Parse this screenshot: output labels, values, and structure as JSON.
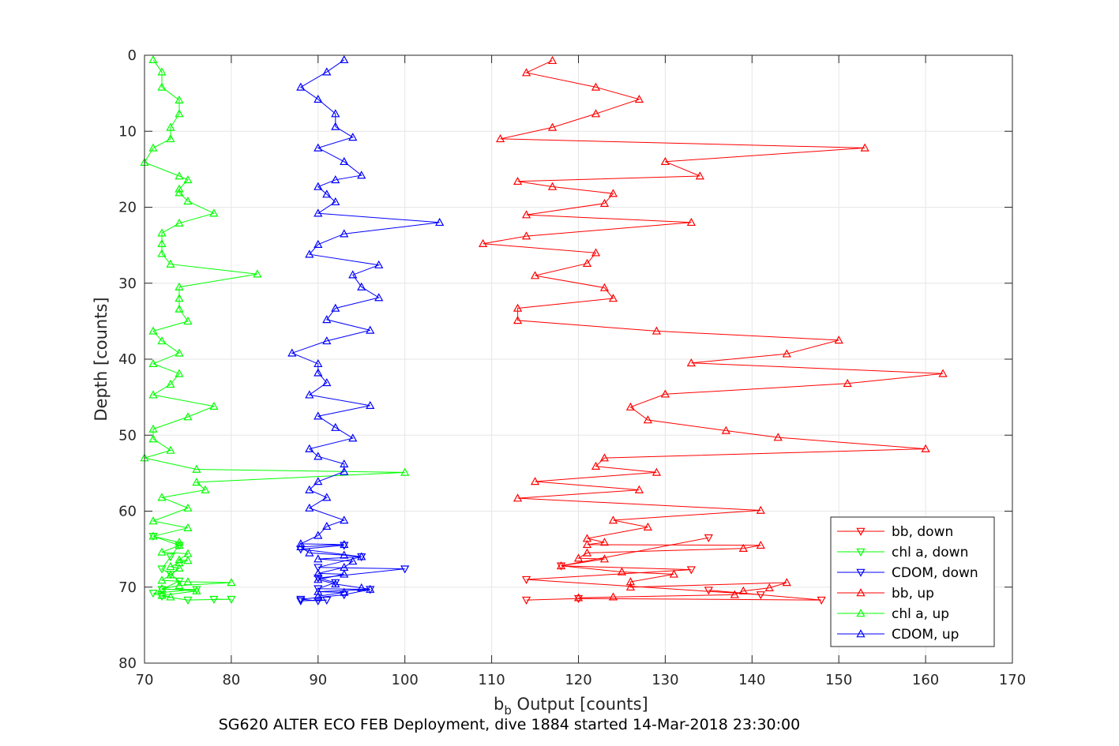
{
  "chart_data": {
    "type": "line",
    "xlabel_main": "b",
    "xlabel_sub": "b",
    "xlabel_rest": " Output [counts]",
    "ylabel": "Depth [counts]",
    "caption": "SG620 ALTER ECO FEB Deployment, dive 1884 started 14-Mar-2018 23:30:00",
    "xlim": [
      70,
      170
    ],
    "ylim": [
      0,
      80
    ],
    "y_reversed": true,
    "grid": true,
    "xticks": [
      70,
      80,
      90,
      100,
      110,
      120,
      130,
      140,
      150,
      160,
      170
    ],
    "yticks": [
      0,
      10,
      20,
      30,
      40,
      50,
      60,
      70,
      80
    ],
    "legend_position": "lower-right",
    "series": [
      {
        "name": "bb, down",
        "color": "#ff0000",
        "marker": "triangle-down",
        "points": [
          [
            135,
            63.5
          ],
          [
            118,
            67.2
          ],
          [
            133,
            67.7
          ],
          [
            114,
            69.0
          ],
          [
            141,
            71.0
          ],
          [
            135,
            70.4
          ],
          [
            148,
            71.7
          ],
          [
            120,
            71.5
          ],
          [
            114,
            71.7
          ]
        ]
      },
      {
        "name": "chl a, down",
        "color": "#00ff00",
        "marker": "triangle-down",
        "points": [
          [
            71,
            63.3
          ],
          [
            74,
            64.5
          ],
          [
            73,
            66.0
          ],
          [
            72,
            67.6
          ],
          [
            73,
            68.3
          ],
          [
            74,
            69.2
          ],
          [
            72,
            70.3
          ],
          [
            76,
            70.3
          ],
          [
            71,
            70.8
          ],
          [
            72,
            71.2
          ],
          [
            75,
            71.7
          ],
          [
            80,
            71.6
          ],
          [
            78,
            71.6
          ]
        ]
      },
      {
        "name": "CDOM, down",
        "color": "#0000ff",
        "marker": "triangle-down",
        "points": [
          [
            93,
            64.5
          ],
          [
            88,
            65.0
          ],
          [
            95,
            66.0
          ],
          [
            90,
            67.4
          ],
          [
            100,
            67.6
          ],
          [
            90,
            68.8
          ],
          [
            92,
            69.4
          ],
          [
            90,
            70.2
          ],
          [
            96,
            70.3
          ],
          [
            93,
            71.0
          ],
          [
            88,
            71.6
          ],
          [
            90,
            71.8
          ],
          [
            91,
            71.7
          ],
          [
            88,
            71.8
          ]
        ]
      },
      {
        "name": "bb, up",
        "color": "#ff0000",
        "marker": "triangle-up",
        "points": [
          [
            117,
            0.7
          ],
          [
            114,
            2.3
          ],
          [
            122,
            4.2
          ],
          [
            127,
            5.8
          ],
          [
            122,
            7.7
          ],
          [
            117,
            9.5
          ],
          [
            111,
            11.0
          ],
          [
            153,
            12.2
          ],
          [
            130,
            14.0
          ],
          [
            134,
            15.9
          ],
          [
            113,
            16.6
          ],
          [
            117,
            17.3
          ],
          [
            124,
            18.2
          ],
          [
            123,
            19.5
          ],
          [
            114,
            21.0
          ],
          [
            133,
            22.0
          ],
          [
            114,
            23.8
          ],
          [
            109,
            24.8
          ],
          [
            122,
            26.0
          ],
          [
            121,
            27.4
          ],
          [
            115,
            29.0
          ],
          [
            123,
            30.6
          ],
          [
            124,
            32.0
          ],
          [
            113,
            33.3
          ],
          [
            113,
            34.9
          ],
          [
            129,
            36.3
          ],
          [
            150,
            37.5
          ],
          [
            144,
            39.3
          ],
          [
            133,
            40.5
          ],
          [
            162,
            41.9
          ],
          [
            151,
            43.2
          ],
          [
            130,
            44.6
          ],
          [
            126,
            46.3
          ],
          [
            128,
            48.0
          ],
          [
            137,
            49.4
          ],
          [
            143,
            50.3
          ],
          [
            160,
            51.8
          ],
          [
            123,
            53.0
          ],
          [
            122,
            54.1
          ],
          [
            129,
            54.9
          ],
          [
            115,
            56.1
          ],
          [
            127,
            57.2
          ],
          [
            113,
            58.3
          ],
          [
            141,
            59.9
          ],
          [
            124,
            61.2
          ],
          [
            128,
            62.1
          ],
          [
            121,
            63.6
          ],
          [
            123,
            64.1
          ],
          [
            121,
            64.4
          ],
          [
            141,
            64.5
          ],
          [
            139,
            64.9
          ],
          [
            121,
            65.5
          ],
          [
            120,
            66.2
          ],
          [
            123,
            66.3
          ],
          [
            118,
            67.2
          ],
          [
            125,
            68.0
          ],
          [
            131,
            68.3
          ],
          [
            126,
            69.3
          ],
          [
            126,
            70.0
          ],
          [
            144,
            69.4
          ],
          [
            142,
            70.1
          ],
          [
            139,
            70.5
          ],
          [
            138,
            71.0
          ],
          [
            124,
            71.3
          ],
          [
            120,
            71.4
          ]
        ]
      },
      {
        "name": "chl a, up",
        "color": "#00ff00",
        "marker": "triangle-up",
        "points": [
          [
            71,
            0.6
          ],
          [
            72,
            2.2
          ],
          [
            72,
            4.2
          ],
          [
            74,
            5.9
          ],
          [
            74,
            7.7
          ],
          [
            73,
            9.5
          ],
          [
            73,
            11.0
          ],
          [
            71,
            12.2
          ],
          [
            70,
            14.1
          ],
          [
            74,
            15.9
          ],
          [
            75,
            16.4
          ],
          [
            74,
            17.6
          ],
          [
            74,
            18.1
          ],
          [
            75,
            19.2
          ],
          [
            78,
            20.8
          ],
          [
            74,
            22.1
          ],
          [
            72,
            23.4
          ],
          [
            72,
            24.8
          ],
          [
            72,
            26.1
          ],
          [
            73,
            27.5
          ],
          [
            83,
            28.8
          ],
          [
            74,
            30.5
          ],
          [
            74,
            32.0
          ],
          [
            74,
            33.4
          ],
          [
            75,
            35.0
          ],
          [
            71,
            36.3
          ],
          [
            72,
            37.6
          ],
          [
            74,
            39.2
          ],
          [
            71,
            40.6
          ],
          [
            74,
            41.9
          ],
          [
            73,
            43.3
          ],
          [
            71,
            44.7
          ],
          [
            78,
            46.2
          ],
          [
            75,
            47.6
          ],
          [
            71,
            49.2
          ],
          [
            71,
            50.5
          ],
          [
            73,
            52.0
          ],
          [
            70,
            53.0
          ],
          [
            76,
            54.5
          ],
          [
            100,
            54.9
          ],
          [
            76,
            56.2
          ],
          [
            77,
            57.2
          ],
          [
            72,
            58.2
          ],
          [
            75,
            59.6
          ],
          [
            71,
            61.3
          ],
          [
            75,
            62.2
          ],
          [
            71,
            63.3
          ],
          [
            74,
            64.1
          ],
          [
            74,
            64.5
          ],
          [
            72,
            65.4
          ],
          [
            75,
            65.6
          ],
          [
            74,
            66.4
          ],
          [
            75,
            66.5
          ],
          [
            74,
            66.8
          ],
          [
            73,
            67.3
          ],
          [
            74,
            67.5
          ],
          [
            73,
            68.4
          ],
          [
            72,
            69.1
          ],
          [
            75,
            69.3
          ],
          [
            80,
            69.4
          ],
          [
            74,
            69.8
          ],
          [
            72,
            70.2
          ],
          [
            76,
            70.5
          ],
          [
            72,
            71.1
          ],
          [
            73,
            71.3
          ]
        ]
      },
      {
        "name": "CDOM, up",
        "color": "#0000ff",
        "marker": "triangle-up",
        "points": [
          [
            93,
            0.6
          ],
          [
            91,
            2.2
          ],
          [
            88,
            4.2
          ],
          [
            90,
            5.8
          ],
          [
            92,
            7.7
          ],
          [
            92,
            9.4
          ],
          [
            94,
            10.8
          ],
          [
            90,
            12.2
          ],
          [
            93,
            14.0
          ],
          [
            95,
            15.8
          ],
          [
            92,
            16.4
          ],
          [
            90,
            17.3
          ],
          [
            91,
            18.3
          ],
          [
            92,
            19.3
          ],
          [
            90,
            20.8
          ],
          [
            104,
            22.0
          ],
          [
            93,
            23.5
          ],
          [
            90,
            24.9
          ],
          [
            89,
            26.2
          ],
          [
            97,
            27.6
          ],
          [
            94,
            28.9
          ],
          [
            95,
            30.5
          ],
          [
            97,
            31.9
          ],
          [
            92,
            33.3
          ],
          [
            91,
            34.8
          ],
          [
            96,
            36.2
          ],
          [
            91,
            37.6
          ],
          [
            87,
            39.2
          ],
          [
            90,
            40.6
          ],
          [
            90,
            41.8
          ],
          [
            91,
            43.1
          ],
          [
            89,
            44.7
          ],
          [
            96,
            46.1
          ],
          [
            90,
            47.5
          ],
          [
            92,
            49.0
          ],
          [
            94,
            50.4
          ],
          [
            89,
            51.8
          ],
          [
            90,
            52.8
          ],
          [
            93,
            53.8
          ],
          [
            93,
            54.8
          ],
          [
            90,
            56.1
          ],
          [
            89,
            57.2
          ],
          [
            91,
            58.2
          ],
          [
            89,
            59.6
          ],
          [
            93,
            61.2
          ],
          [
            91,
            62.0
          ],
          [
            90,
            63.2
          ],
          [
            88,
            64.3
          ],
          [
            93,
            64.4
          ],
          [
            88,
            64.7
          ],
          [
            89,
            65.5
          ],
          [
            93,
            65.8
          ],
          [
            95,
            66.0
          ],
          [
            90,
            66.3
          ],
          [
            94,
            66.6
          ],
          [
            93,
            67.4
          ],
          [
            90,
            68.2
          ],
          [
            93,
            68.3
          ],
          [
            90,
            69.0
          ],
          [
            92,
            69.6
          ],
          [
            95,
            70.1
          ],
          [
            96,
            70.3
          ],
          [
            90,
            70.6
          ],
          [
            93,
            70.7
          ],
          [
            90,
            71.2
          ]
        ]
      }
    ]
  }
}
